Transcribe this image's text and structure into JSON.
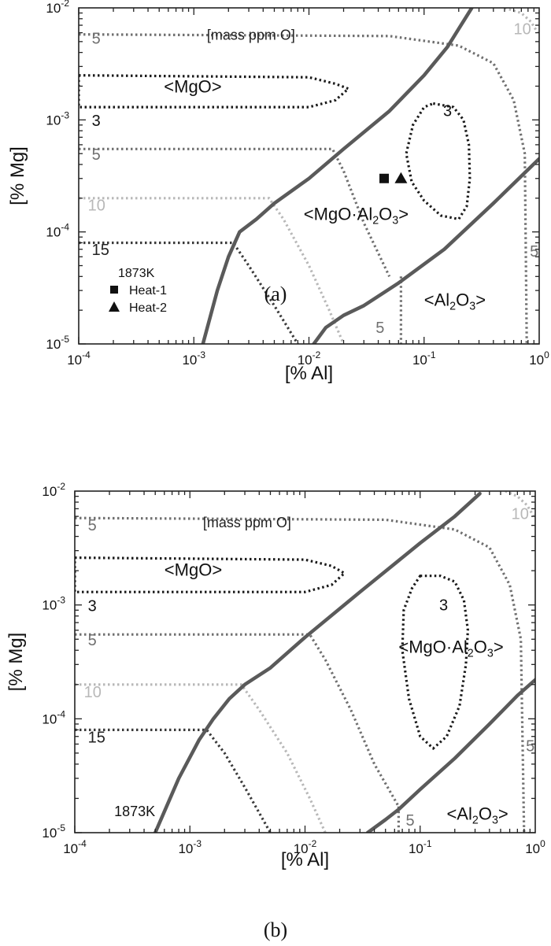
{
  "chart_data": [
    {
      "type": "line",
      "panel_label": "(a)",
      "xlabel": "[% Al]",
      "ylabel": "[% Mg]",
      "xscale": "log",
      "yscale": "log",
      "xlim": [
        0.0001,
        1
      ],
      "ylim": [
        1e-05,
        0.01
      ],
      "x_ticks": [
        {
          "value": 0.0001,
          "base": "10",
          "exp": "-4"
        },
        {
          "value": 0.001,
          "base": "10",
          "exp": "-3"
        },
        {
          "value": 0.01,
          "base": "10",
          "exp": "-2"
        },
        {
          "value": 0.1,
          "base": "10",
          "exp": "-1"
        },
        {
          "value": 1,
          "base": "10",
          "exp": "0"
        }
      ],
      "y_ticks": [
        {
          "value": 1e-05,
          "base": "10",
          "exp": "-5"
        },
        {
          "value": 0.0001,
          "base": "10",
          "exp": "-4"
        },
        {
          "value": 0.001,
          "base": "10",
          "exp": "-3"
        },
        {
          "value": 0.01,
          "base": "10",
          "exp": "-2"
        }
      ],
      "grid": false,
      "boundaries": [
        {
          "name": "MgO / MgO·Al2O3",
          "color": "#5a5a5a",
          "style": "solid",
          "x": [
            0.0012,
            0.0016,
            0.002,
            0.0025,
            0.0035,
            0.005,
            0.01,
            0.02,
            0.05,
            0.1,
            0.16,
            0.2,
            0.26
          ],
          "y": [
            1e-05,
            3e-05,
            6e-05,
            0.0001,
            0.00013,
            0.00018,
            0.0003,
            0.00055,
            0.0012,
            0.0025,
            0.0045,
            0.0065,
            0.01
          ]
        },
        {
          "name": "MgO·Al2O3 / Al2O3",
          "color": "#5a5a5a",
          "style": "solid",
          "x": [
            0.011,
            0.014,
            0.02,
            0.03,
            0.06,
            0.15,
            0.4,
            1.0
          ],
          "y": [
            1e-05,
            1.4e-05,
            1.8e-05,
            2.2e-05,
            3.5e-05,
            7e-05,
            0.00018,
            0.00045
          ]
        }
      ],
      "iso_oxygen": [
        {
          "label": "15",
          "color": "#3a3a3a",
          "x": [
            0.0001,
            0.0022,
            0.003,
            0.005,
            0.008
          ],
          "y": [
            8e-05,
            8e-05,
            5e-05,
            2.2e-05,
            1e-05
          ]
        },
        {
          "label": "10",
          "color": "#b8b8b8",
          "x": [
            0.0001,
            0.0045,
            0.006,
            0.01,
            0.015,
            0.02
          ],
          "y": [
            0.0002,
            0.0002,
            0.00013,
            5e-05,
            2e-05,
            1e-05
          ]
        },
        {
          "label": "5",
          "color": "#707070",
          "x": [
            0.0001,
            0.016,
            0.02,
            0.03,
            0.05
          ],
          "y": [
            0.00055,
            0.00055,
            0.00035,
            0.00012,
            4e-05
          ]
        },
        {
          "label": "5",
          "color": "#707070",
          "x": [
            0.063,
            0.063
          ],
          "y": [
            4e-05,
            1e-05
          ]
        },
        {
          "label": "5",
          "color": "#707070",
          "x": [
            0.0001,
            0.05,
            0.2,
            0.4,
            0.6,
            0.75,
            0.78
          ],
          "y": [
            0.0058,
            0.0056,
            0.0046,
            0.0032,
            0.0015,
            0.0005,
            1e-05
          ]
        },
        {
          "label": "3",
          "color": "#1a1a1a",
          "closed": true,
          "x": [
            0.0001,
            0.01,
            0.017,
            0.022,
            0.017,
            0.01,
            0.0001
          ],
          "y": [
            0.0025,
            0.0024,
            0.0021,
            0.0019,
            0.0015,
            0.0013,
            0.0013
          ]
        },
        {
          "label": "3",
          "color": "#1a1a1a",
          "closed": true,
          "x": [
            0.12,
            0.18,
            0.22,
            0.245,
            0.25,
            0.235,
            0.2,
            0.14,
            0.1,
            0.078,
            0.07,
            0.08,
            0.1
          ],
          "y": [
            0.0014,
            0.0013,
            0.001,
            0.0006,
            0.0003,
            0.00017,
            0.00013,
            0.00014,
            0.00019,
            0.00028,
            0.0005,
            0.0009,
            0.0013
          ]
        },
        {
          "label": "10",
          "color": "#b8b8b8",
          "x": [
            0.5,
            0.7,
            0.85,
            0.97
          ],
          "y": [
            0.01,
            0.009,
            0.0075,
            0.006
          ]
        }
      ],
      "points": [
        {
          "name": "Heat-1",
          "marker": "square",
          "x": 0.045,
          "y": 0.0003
        },
        {
          "name": "Heat-2",
          "marker": "triangle",
          "x": 0.063,
          "y": 0.0003
        }
      ],
      "legend": {
        "title": "1873K",
        "placement": "bottom-left",
        "items": [
          "Heat-1",
          "Heat-2"
        ]
      },
      "annotations": [
        {
          "text": "[mass ppm O]",
          "x": 0.0013,
          "y": 0.0052,
          "color": "#222222",
          "size": 18,
          "anchor": "start"
        },
        {
          "text": "5",
          "x": 0.00013,
          "y": 0.0048,
          "color": "#707070",
          "size": 20,
          "anchor": "start"
        },
        {
          "text": "<MgO>",
          "x": 0.00055,
          "y": 0.00175,
          "color": "#111111",
          "size": 22,
          "anchor": "start"
        },
        {
          "text": "3",
          "x": 0.00013,
          "y": 0.00088,
          "color": "#111111",
          "size": 20,
          "anchor": "start"
        },
        {
          "text": "5",
          "x": 0.00013,
          "y": 0.00044,
          "color": "#707070",
          "size": 20,
          "anchor": "start"
        },
        {
          "text": "10",
          "x": 0.00012,
          "y": 0.000155,
          "color": "#b8b8b8",
          "size": 20,
          "anchor": "start"
        },
        {
          "text": "15",
          "x": 0.00013,
          "y": 6.2e-05,
          "color": "#222222",
          "size": 20,
          "anchor": "start"
        },
        {
          "text": "3",
          "x": 0.16,
          "y": 0.00108,
          "color": "#111111",
          "size": 20,
          "anchor": "middle"
        },
        {
          "text": "<MgO·Al2O3>",
          "main": "<MgO·Al",
          "sub1": "2",
          "mid": "O",
          "sub2": "3",
          "end": ">",
          "x": 0.009,
          "y": 0.000128,
          "color": "#111111",
          "size": 22,
          "anchor": "start"
        },
        {
          "text": "5",
          "x": 0.83,
          "y": 6e-05,
          "color": "#707070",
          "size": 20,
          "anchor": "start"
        },
        {
          "text": "<Al2O3>",
          "main": "<Al",
          "sub1": "2",
          "mid": "O",
          "sub2": "3",
          "end": ">",
          "x": 0.1,
          "y": 2.2e-05,
          "color": "#111111",
          "size": 22,
          "anchor": "start"
        },
        {
          "text": "5",
          "x": 0.038,
          "y": 1.25e-05,
          "color": "#707070",
          "size": 20,
          "anchor": "start"
        },
        {
          "text": "10",
          "x": 0.6,
          "y": 0.0058,
          "color": "#b8b8b8",
          "size": 20,
          "anchor": "start"
        }
      ]
    },
    {
      "type": "line",
      "panel_label": "(b)",
      "xlabel": "[% Al]",
      "ylabel": "[% Mg]",
      "xscale": "log",
      "yscale": "log",
      "xlim": [
        0.0001,
        1
      ],
      "ylim": [
        1e-05,
        0.01
      ],
      "x_ticks": [
        {
          "value": 0.0001,
          "base": "10",
          "exp": "-4"
        },
        {
          "value": 0.001,
          "base": "10",
          "exp": "-3"
        },
        {
          "value": 0.01,
          "base": "10",
          "exp": "-2"
        },
        {
          "value": 0.1,
          "base": "10",
          "exp": "-1"
        },
        {
          "value": 1,
          "base": "10",
          "exp": "0"
        }
      ],
      "y_ticks": [
        {
          "value": 1e-05,
          "base": "10",
          "exp": "-5"
        },
        {
          "value": 0.0001,
          "base": "10",
          "exp": "-4"
        },
        {
          "value": 0.001,
          "base": "10",
          "exp": "-3"
        },
        {
          "value": 0.01,
          "base": "10",
          "exp": "-2"
        }
      ],
      "grid": false,
      "boundaries": [
        {
          "name": "MgO / MgO·Al2O3",
          "color": "#5a5a5a",
          "style": "solid",
          "x": [
            0.0005,
            0.0008,
            0.0012,
            0.0016,
            0.0022,
            0.003,
            0.005,
            0.01,
            0.03,
            0.1,
            0.2,
            0.33
          ],
          "y": [
            1e-05,
            3e-05,
            6.5e-05,
            0.0001,
            0.00015,
            0.0002,
            0.00028,
            0.00052,
            0.0013,
            0.0035,
            0.006,
            0.0095
          ]
        },
        {
          "name": "MgO·Al2O3 / Al2O3",
          "color": "#5a5a5a",
          "style": "solid",
          "x": [
            0.035,
            0.05,
            0.065,
            0.1,
            0.2,
            0.4,
            0.7,
            1.0
          ],
          "y": [
            1e-05,
            1.3e-05,
            1.6e-05,
            2.4e-05,
            4.5e-05,
            9e-05,
            0.00016,
            0.00022
          ]
        }
      ],
      "iso_oxygen": [
        {
          "label": "15",
          "color": "#3a3a3a",
          "x": [
            0.0001,
            0.0014,
            0.002,
            0.003,
            0.005
          ],
          "y": [
            8e-05,
            8e-05,
            5e-05,
            2.5e-05,
            1e-05
          ]
        },
        {
          "label": "10",
          "color": "#b8b8b8",
          "x": [
            0.0001,
            0.0028,
            0.004,
            0.007,
            0.011,
            0.015
          ],
          "y": [
            0.0002,
            0.0002,
            0.00012,
            5e-05,
            2e-05,
            1e-05
          ]
        },
        {
          "label": "5",
          "color": "#707070",
          "x": [
            0.0001,
            0.011,
            0.015,
            0.025,
            0.04,
            0.065
          ],
          "y": [
            0.00055,
            0.00055,
            0.00033,
            0.00012,
            4e-05,
            1.7e-05
          ]
        },
        {
          "label": "5",
          "color": "#707070",
          "x": [
            0.065,
            0.065
          ],
          "y": [
            1.7e-05,
            1e-05
          ]
        },
        {
          "label": "5",
          "color": "#707070",
          "x": [
            0.0001,
            0.05,
            0.2,
            0.4,
            0.6,
            0.75,
            0.8
          ],
          "y": [
            0.0058,
            0.0056,
            0.0046,
            0.0032,
            0.0015,
            0.0005,
            1e-05
          ]
        },
        {
          "label": "3",
          "color": "#1a1a1a",
          "closed": true,
          "x": [
            0.0001,
            0.01,
            0.017,
            0.022,
            0.017,
            0.01,
            0.0001
          ],
          "y": [
            0.0026,
            0.0025,
            0.0022,
            0.0019,
            0.0015,
            0.0013,
            0.0013
          ]
        },
        {
          "label": "3",
          "color": "#1a1a1a",
          "closed": true,
          "x": [
            0.1,
            0.15,
            0.2,
            0.24,
            0.26,
            0.25,
            0.22,
            0.17,
            0.13,
            0.1,
            0.08,
            0.07,
            0.072,
            0.085,
            0.1
          ],
          "y": [
            0.0018,
            0.0018,
            0.0016,
            0.0011,
            0.0006,
            0.0003,
            0.00013,
            7e-05,
            5.5e-05,
            7e-05,
            0.00015,
            0.0004,
            0.0009,
            0.0014,
            0.0018
          ]
        },
        {
          "label": "10",
          "color": "#b8b8b8",
          "x": [
            0.55,
            0.7,
            0.85,
            0.97
          ],
          "y": [
            0.01,
            0.009,
            0.0075,
            0.006
          ]
        }
      ],
      "points": [],
      "annotations": [
        {
          "text": "[mass ppm O]",
          "x": 0.0013,
          "y": 0.0048,
          "color": "#222222",
          "size": 18,
          "anchor": "start"
        },
        {
          "text": "5",
          "x": 0.00013,
          "y": 0.0045,
          "color": "#707070",
          "size": 20,
          "anchor": "start"
        },
        {
          "text": "<MgO>",
          "x": 0.0006,
          "y": 0.0018,
          "color": "#111111",
          "size": 22,
          "anchor": "start"
        },
        {
          "text": "3",
          "x": 0.00013,
          "y": 0.00088,
          "color": "#111111",
          "size": 20,
          "anchor": "start"
        },
        {
          "text": "5",
          "x": 0.00013,
          "y": 0.00044,
          "color": "#707070",
          "size": 20,
          "anchor": "start"
        },
        {
          "text": "10",
          "x": 0.00012,
          "y": 0.000155,
          "color": "#b8b8b8",
          "size": 20,
          "anchor": "start"
        },
        {
          "text": "15",
          "x": 0.00013,
          "y": 6.2e-05,
          "color": "#222222",
          "size": 20,
          "anchor": "start"
        },
        {
          "text": "1873K",
          "x": 0.00022,
          "y": 1.4e-05,
          "color": "#111111",
          "size": 18,
          "anchor": "start"
        },
        {
          "text": "3",
          "x": 0.16,
          "y": 0.0009,
          "color": "#111111",
          "size": 20,
          "anchor": "middle"
        },
        {
          "text": "<MgO·Al2O3>",
          "main": "<MgO·Al",
          "sub1": "2",
          "mid": "O",
          "sub2": "3",
          "end": ">",
          "x": 0.065,
          "y": 0.00038,
          "color": "#111111",
          "size": 22,
          "anchor": "start"
        },
        {
          "text": "5",
          "x": 0.83,
          "y": 5.2e-05,
          "color": "#707070",
          "size": 20,
          "anchor": "start"
        },
        {
          "text": "<Al2O3>",
          "main": "<Al",
          "sub1": "2",
          "mid": "O",
          "sub2": "3",
          "end": ">",
          "x": 0.17,
          "y": 1.3e-05,
          "color": "#111111",
          "size": 22,
          "anchor": "start"
        },
        {
          "text": "5",
          "x": 0.075,
          "y": 1.15e-05,
          "color": "#707070",
          "size": 20,
          "anchor": "start"
        },
        {
          "text": "10",
          "x": 0.62,
          "y": 0.0057,
          "color": "#b8b8b8",
          "size": 20,
          "anchor": "start"
        }
      ]
    }
  ]
}
